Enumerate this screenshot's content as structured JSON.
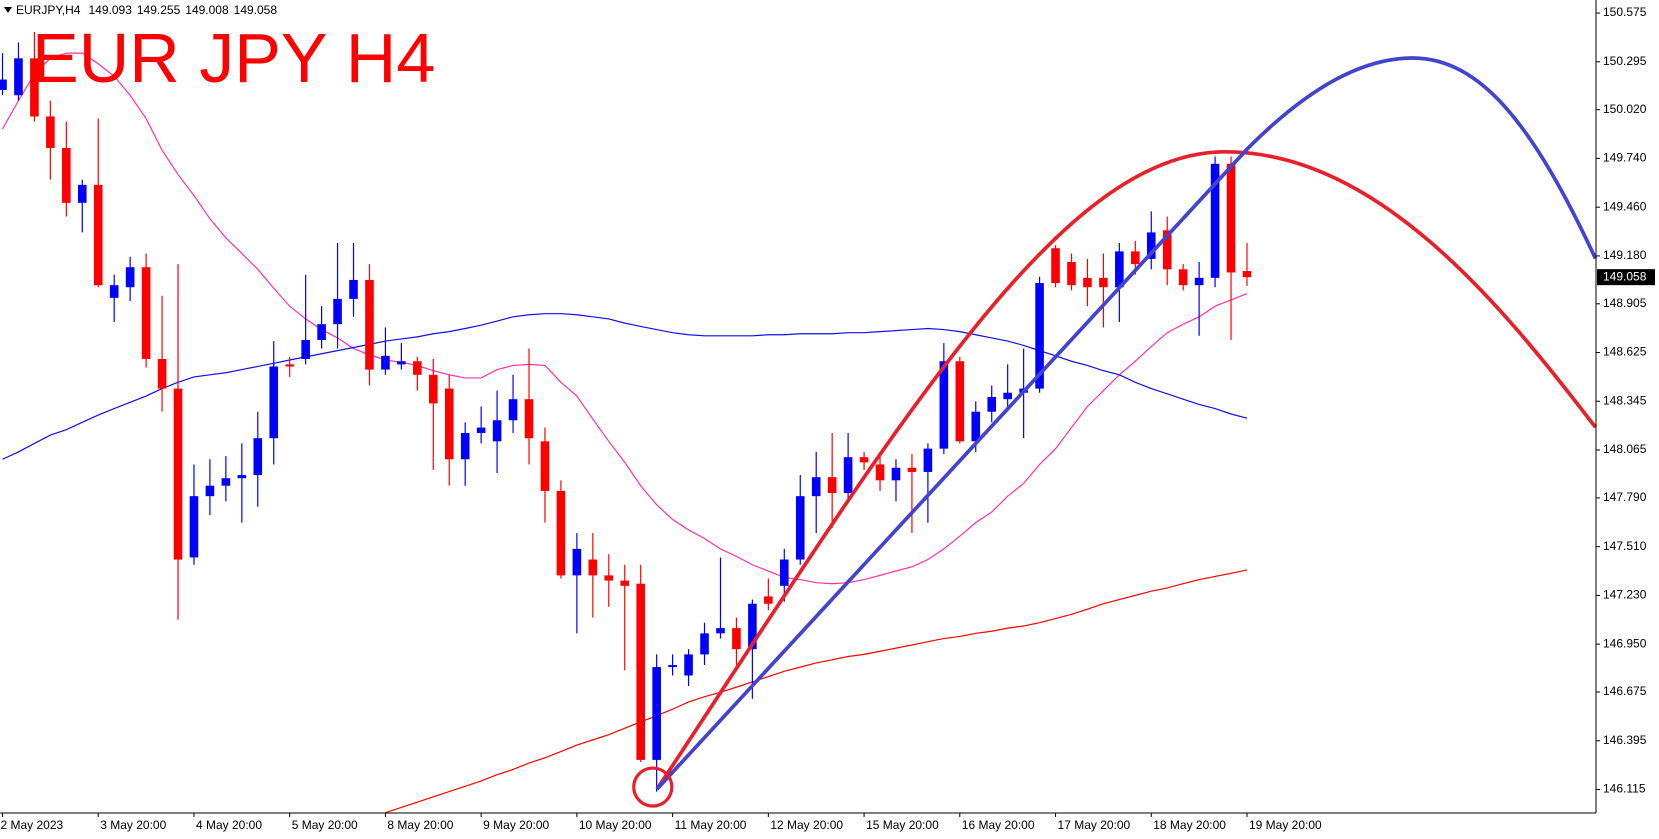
{
  "chart_data": {
    "type": "candlestick",
    "title": "EUR JPY H4",
    "symbol": "EURJPY,H4",
    "categories": [
      "2 May 2023",
      null,
      null,
      null,
      null,
      null,
      "3 May 20:00",
      null,
      null,
      null,
      null,
      null,
      "4 May 20:00",
      null,
      null,
      null,
      null,
      null,
      "5 May 20:00",
      null,
      null,
      null,
      null,
      null,
      "8 May 20:00",
      null,
      null,
      null,
      null,
      null,
      "9 May 20:00",
      null,
      null,
      null,
      null,
      null,
      "10 May 20:00",
      null,
      null,
      null,
      null,
      null,
      "11 May 20:00",
      null,
      null,
      null,
      null,
      null,
      "12 May 20:00",
      null,
      null,
      null,
      null,
      null,
      "15 May 20:00",
      null,
      null,
      null,
      null,
      null,
      "16 May 20:00",
      null,
      null,
      null,
      null,
      null,
      "17 May 20:00",
      null,
      null,
      null,
      null,
      null,
      "18 May 20:00",
      null,
      null,
      null,
      null,
      null,
      "19 May 20:00"
    ],
    "open": [
      150.133,
      150.103,
      150.315,
      149.981,
      149.8,
      149.485,
      149.588,
      148.939,
      149.0,
      149.115,
      148.588,
      148.418,
      147.448,
      147.8,
      147.86,
      147.903,
      147.921,
      148.133,
      148.557,
      148.588,
      148.697,
      148.788,
      148.933,
      149.042,
      148.527,
      148.557,
      148.575,
      148.497,
      148.418,
      148.012,
      148.163,
      148.115,
      148.236,
      148.357,
      148.115,
      147.83,
      147.345,
      147.436,
      147.345,
      147.315,
      147.297,
      146.285,
      146.818,
      146.77,
      146.891,
      147.012,
      147.042,
      146.921,
      147.224,
      147.285,
      147.436,
      147.8,
      147.909,
      147.818,
      148.024,
      147.982,
      147.891,
      147.963,
      147.939,
      148.073,
      148.575,
      148.115,
      148.285,
      148.357,
      148.394,
      148.418,
      149.224,
      149.145,
      149.054,
      149.054,
      149.0,
      149.206,
      149.163,
      149.327,
      149.103,
      149.012,
      149.054,
      149.709,
      149.093
    ],
    "high": [
      150.345,
      150.406,
      150.466,
      150.072,
      149.951,
      149.618,
      149.969,
      149.072,
      149.175,
      149.194,
      148.951,
      149.133,
      147.982,
      148.012,
      148.03,
      148.103,
      148.285,
      148.691,
      148.6,
      149.072,
      148.891,
      149.254,
      149.254,
      149.133,
      148.769,
      148.679,
      148.6,
      148.588,
      148.497,
      148.224,
      148.315,
      148.406,
      148.497,
      148.648,
      148.194,
      147.891,
      147.588,
      147.588,
      147.467,
      147.406,
      147.406,
      146.891,
      146.891,
      146.921,
      147.073,
      147.448,
      147.103,
      147.206,
      147.327,
      147.497,
      147.921,
      148.054,
      148.163,
      148.163,
      148.054,
      148.042,
      148.012,
      148.042,
      148.103,
      148.679,
      148.6,
      148.345,
      148.436,
      148.557,
      148.648,
      149.06,
      149.242,
      149.194,
      149.163,
      149.194,
      149.254,
      149.266,
      149.436,
      149.406,
      149.133,
      149.145,
      149.751,
      149.751,
      149.255
    ],
    "low": [
      150.103,
      150.072,
      149.951,
      149.618,
      149.406,
      149.315,
      149.0,
      148.8,
      148.921,
      148.539,
      148.285,
      147.091,
      147.406,
      147.691,
      147.77,
      147.648,
      147.739,
      147.982,
      148.485,
      148.557,
      148.648,
      148.648,
      148.83,
      148.436,
      148.497,
      148.527,
      148.406,
      147.951,
      147.86,
      147.86,
      148.103,
      147.933,
      148.163,
      147.982,
      147.648,
      147.327,
      147.012,
      147.103,
      147.164,
      146.8,
      146.273,
      146.103,
      146.77,
      146.709,
      146.83,
      146.982,
      146.83,
      146.636,
      147.145,
      147.194,
      147.406,
      147.588,
      147.618,
      147.77,
      147.951,
      147.83,
      147.77,
      147.588,
      147.648,
      148.042,
      148.103,
      148.054,
      148.224,
      148.315,
      148.133,
      148.394,
      149.0,
      148.982,
      148.891,
      148.769,
      148.8,
      149.072,
      149.103,
      149.012,
      148.982,
      148.721,
      149.0,
      148.697,
      149.008
    ],
    "close": [
      150.193,
      150.315,
      149.981,
      149.8,
      149.485,
      149.588,
      149.012,
      149.012,
      149.115,
      148.588,
      148.418,
      147.436,
      147.8,
      147.86,
      147.903,
      147.921,
      148.133,
      148.545,
      148.545,
      148.697,
      148.788,
      148.933,
      149.042,
      148.527,
      148.606,
      148.575,
      148.497,
      148.333,
      148.012,
      148.163,
      148.194,
      148.236,
      148.357,
      148.133,
      147.83,
      147.345,
      147.497,
      147.345,
      147.315,
      147.285,
      146.285,
      146.818,
      146.83,
      146.891,
      147.012,
      147.042,
      146.921,
      147.182,
      147.182,
      147.436,
      147.8,
      147.909,
      147.818,
      148.024,
      147.994,
      147.891,
      147.963,
      147.939,
      148.073,
      148.575,
      148.115,
      148.285,
      148.37,
      148.394,
      148.418,
      149.024,
      149.024,
      149.012,
      149.0,
      149.0,
      149.206,
      149.133,
      149.315,
      149.103,
      149.012,
      149.054,
      149.709,
      149.085,
      149.058
    ],
    "up_color": "#0000ff",
    "down_color": "#ff0000",
    "lines": [
      {
        "color": "#ff2fb0",
        "values": [
          149.909,
          150.072,
          150.224,
          150.315,
          150.345,
          150.345,
          150.284,
          150.212,
          150.103,
          149.969,
          149.787,
          149.648,
          149.527,
          149.394,
          149.284,
          149.194,
          149.103,
          148.994,
          148.891,
          148.818,
          148.757,
          148.709,
          148.648,
          148.612,
          148.582,
          148.569,
          148.551,
          148.521,
          148.497,
          148.479,
          148.479,
          148.527,
          148.551,
          148.557,
          148.551,
          148.454,
          148.375,
          148.242,
          148.115,
          147.994,
          147.86,
          147.751,
          147.666,
          147.606,
          147.557,
          147.497,
          147.454,
          147.406,
          147.37,
          147.333,
          147.321,
          147.303,
          147.297,
          147.303,
          147.321,
          147.345,
          147.37,
          147.394,
          147.436,
          147.497,
          147.57,
          147.648,
          147.709,
          147.8,
          147.873,
          147.982,
          148.072,
          148.194,
          148.315,
          148.406,
          148.497,
          148.575,
          148.66,
          148.739,
          148.788,
          148.83,
          148.891,
          148.927,
          148.963
        ]
      },
      {
        "color": "#1010e8",
        "values": [
          148.012,
          148.054,
          148.103,
          148.151,
          148.182,
          148.224,
          148.266,
          148.303,
          148.339,
          148.375,
          148.418,
          148.454,
          148.485,
          148.497,
          148.509,
          148.527,
          148.545,
          148.563,
          148.582,
          148.6,
          148.618,
          148.636,
          148.654,
          148.672,
          148.691,
          148.703,
          148.715,
          148.733,
          148.745,
          148.763,
          148.782,
          148.806,
          148.83,
          148.842,
          148.848,
          148.848,
          148.842,
          148.83,
          148.818,
          148.794,
          148.775,
          148.757,
          148.739,
          148.727,
          148.721,
          148.721,
          148.721,
          148.721,
          148.727,
          148.727,
          148.733,
          148.733,
          148.733,
          148.739,
          148.739,
          148.745,
          148.751,
          148.757,
          148.763,
          148.757,
          148.745,
          148.727,
          148.709,
          148.691,
          148.666,
          148.636,
          148.606,
          148.575,
          148.551,
          148.521,
          148.497,
          148.454,
          148.418,
          148.388,
          148.357,
          148.327,
          148.303,
          148.272,
          148.248
        ]
      },
      {
        "color": "#ff0000",
        "values": [
          null,
          null,
          null,
          null,
          null,
          null,
          null,
          null,
          null,
          null,
          null,
          null,
          null,
          null,
          null,
          null,
          null,
          null,
          null,
          null,
          null,
          null,
          null,
          null,
          145.982,
          146.012,
          146.042,
          146.073,
          146.103,
          146.133,
          146.164,
          146.2,
          146.23,
          146.267,
          146.297,
          146.333,
          146.37,
          146.4,
          146.43,
          146.467,
          146.503,
          146.539,
          146.576,
          146.618,
          146.648,
          146.673,
          146.703,
          146.733,
          146.764,
          146.794,
          146.818,
          146.842,
          146.86,
          146.879,
          146.891,
          146.909,
          146.927,
          146.945,
          146.964,
          146.982,
          146.994,
          147.012,
          147.024,
          147.042,
          147.054,
          147.073,
          147.097,
          147.121,
          147.151,
          147.182,
          147.206,
          147.23,
          147.254,
          147.273,
          147.297,
          147.321,
          147.339,
          147.357,
          147.376
        ]
      }
    ],
    "ylim": [
      145.98,
      150.65
    ],
    "yticks": [
      150.575,
      150.295,
      {
        "value": 150.02,
        "label": "150.020"
      },
      {
        "value": 149.74,
        "label": "149.740"
      },
      {
        "value": 149.46,
        "label": "149.460"
      },
      {
        "value": 149.18,
        "label": "149.180"
      },
      148.905,
      148.625,
      148.345,
      148.065,
      {
        "value": 147.79,
        "label": "147.790"
      },
      {
        "value": 147.51,
        "label": "147.510"
      },
      {
        "value": 147.23,
        "label": "147.230"
      },
      {
        "value": 146.95,
        "label": "146.950"
      },
      146.675,
      146.395,
      146.115
    ]
  }
}
